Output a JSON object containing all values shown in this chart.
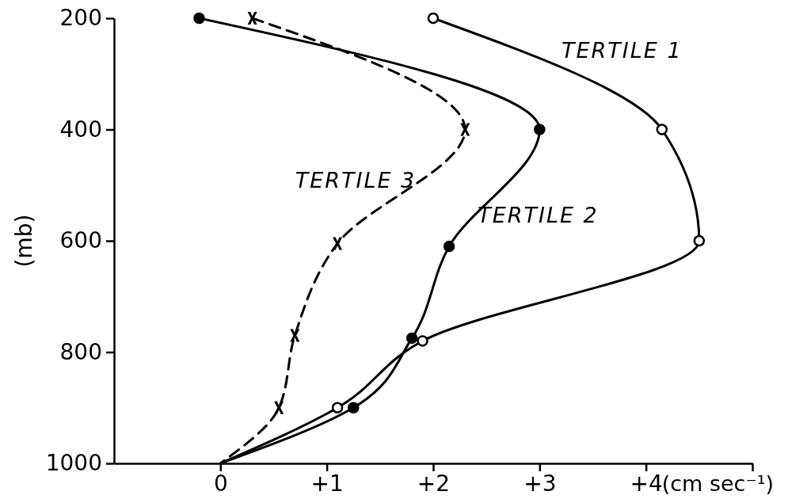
{
  "chart_data": {
    "type": "line",
    "xlabel": "(cm sec⁻¹)",
    "ylabel": "(mb)",
    "xlim": [
      -1,
      5
    ],
    "xticks": [
      0,
      {
        "value": 1,
        "label": "+1"
      },
      {
        "value": 2,
        "label": "+2"
      },
      {
        "value": 3,
        "label": "+3"
      },
      {
        "value": 4,
        "label": "+4"
      },
      {
        "value": 5,
        "label": null
      }
    ],
    "ylim": [
      1000,
      200
    ],
    "yticks": [
      200,
      400,
      600,
      800,
      1000
    ],
    "series": [
      {
        "name": "TERTILE 1",
        "color": "#000000",
        "colors": [
          "#ffffff",
          "#ffffff",
          "#ffffff",
          "#ffffff",
          "#ffffff",
          null
        ],
        "marker": "circle",
        "line_style": "solid",
        "x": [
          2.0,
          4.15,
          4.5,
          1.9,
          1.1,
          0
        ],
        "values": [
          200,
          400,
          600,
          780,
          900,
          1000
        ]
      },
      {
        "name": "TERTILE 2",
        "color": "#000000",
        "colors": [
          "#000000",
          "#000000",
          "#000000",
          "#000000",
          "#000000",
          null
        ],
        "marker": "circle",
        "line_style": "solid",
        "x": [
          -0.2,
          3.0,
          2.15,
          1.8,
          1.25,
          0
        ],
        "values": [
          200,
          400,
          610,
          775,
          900,
          1000
        ]
      },
      {
        "name": "TERTILE 3",
        "color": "#000000",
        "colors": [
          "#000000",
          "#000000",
          "#000000",
          "#000000",
          "#000000",
          null
        ],
        "marker": "cross",
        "line_style": "dashed",
        "x": [
          0.3,
          2.3,
          1.1,
          0.7,
          0.55,
          0
        ],
        "values": [
          200,
          400,
          605,
          770,
          900,
          1000
        ]
      }
    ]
  }
}
